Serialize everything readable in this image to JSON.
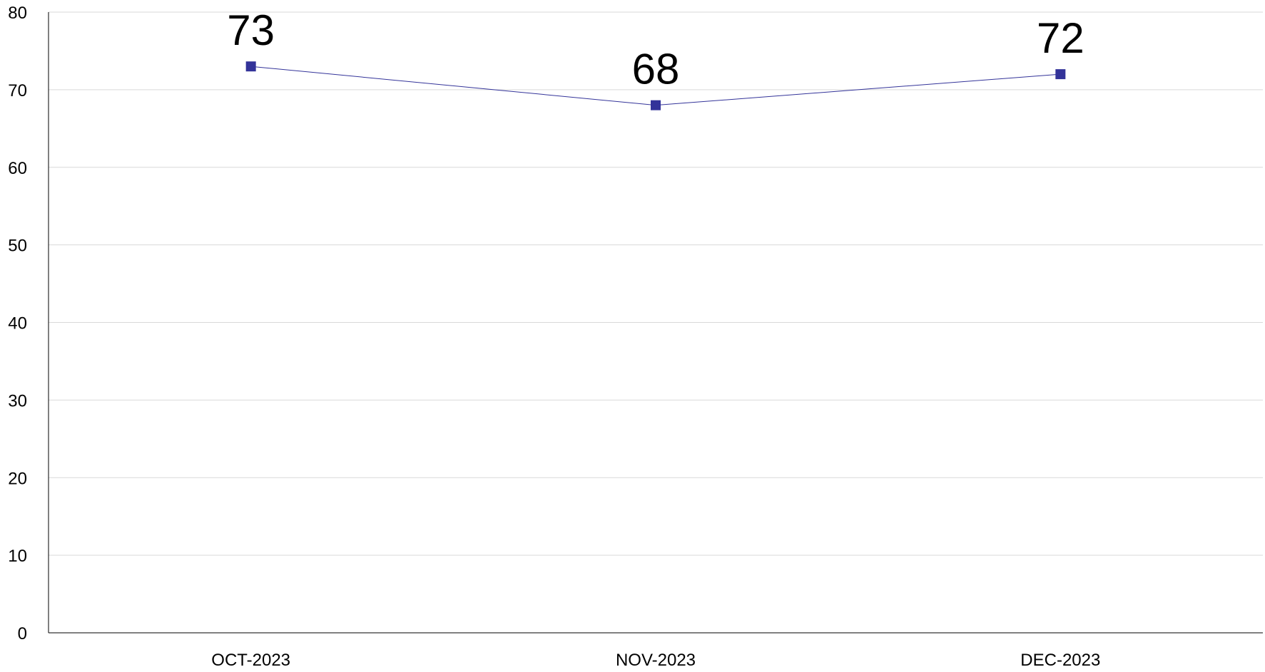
{
  "chart_data": {
    "type": "line",
    "categories": [
      "OCT-2023",
      "NOV-2023",
      "DEC-2023"
    ],
    "series": [
      {
        "values": [
          73,
          68,
          72
        ]
      }
    ],
    "y_ticks": [
      "0",
      "10",
      "20",
      "30",
      "40",
      "50",
      "60",
      "70",
      "80"
    ],
    "data_labels": [
      "73",
      "68",
      "72"
    ],
    "ylim": [
      0,
      80
    ],
    "grid": true,
    "legend": "none",
    "colors": {
      "series": "#333399",
      "grid": "#d9d9d9",
      "axis": "#000000"
    }
  }
}
